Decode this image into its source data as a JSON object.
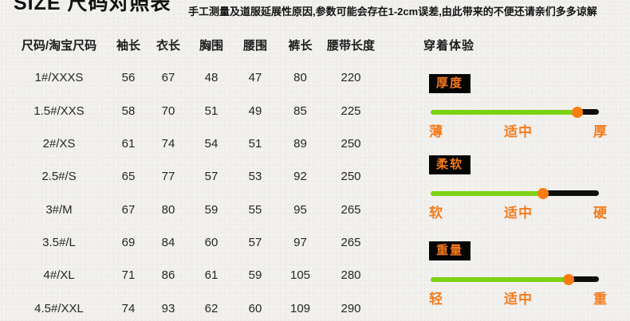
{
  "header": {
    "title": "SIZE 尺码对照表",
    "disclaimer": "手工测量及道服延展性原因,参数可能会存在1-2cm误差,由此带来的不便还请亲们多多谅解"
  },
  "size_table": {
    "columns": [
      "尺码/淘宝尺码",
      "袖长",
      "衣长",
      "胸围",
      "腰围",
      "裤长",
      "腰带长度"
    ],
    "rows": [
      [
        "1#/XXXS",
        "56",
        "67",
        "48",
        "47",
        "80",
        "220"
      ],
      [
        "1.5#/XXS",
        "58",
        "70",
        "51",
        "49",
        "85",
        "225"
      ],
      [
        "2#/XS",
        "61",
        "74",
        "54",
        "51",
        "89",
        "250"
      ],
      [
        "2.5#/S",
        "65",
        "77",
        "57",
        "53",
        "92",
        "250"
      ],
      [
        "3#/M",
        "67",
        "80",
        "59",
        "55",
        "95",
        "265"
      ],
      [
        "3.5#/L",
        "69",
        "84",
        "60",
        "57",
        "97",
        "265"
      ],
      [
        "4#/XL",
        "71",
        "86",
        "61",
        "59",
        "105",
        "280"
      ],
      [
        "4.5#/XXL",
        "74",
        "93",
        "62",
        "60",
        "109",
        "290"
      ]
    ]
  },
  "experience": {
    "title": "穿着体验",
    "sliders": [
      {
        "label": "厚度",
        "scale_left": "薄",
        "scale_middle": "适中",
        "scale_right": "厚",
        "value_pct": 87
      },
      {
        "label": "柔软",
        "scale_left": "软",
        "scale_middle": "适中",
        "scale_right": "硬",
        "value_pct": 67
      },
      {
        "label": "重量",
        "scale_left": "轻",
        "scale_middle": "适中",
        "scale_right": "重",
        "value_pct": 82
      }
    ]
  },
  "colors": {
    "background": "#f1f0ed",
    "text": "#1f1f1f",
    "slider_green": "#7cd113",
    "slider_black": "#0d0d0d",
    "dot_orange": "#fa7d10",
    "label_orange": "#f57c1e",
    "badge_background": "#050505"
  },
  "chart_data": {
    "type": "table",
    "title": "SIZE 尺码对照表",
    "columns": [
      "尺码/淘宝尺码",
      "袖长",
      "衣长",
      "胸围",
      "腰围",
      "裤长",
      "腰带长度"
    ],
    "rows": [
      [
        "1#/XXXS",
        56,
        67,
        48,
        47,
        80,
        220
      ],
      [
        "1.5#/XXS",
        58,
        70,
        51,
        49,
        85,
        225
      ],
      [
        "2#/XS",
        61,
        74,
        54,
        51,
        89,
        250
      ],
      [
        "2.5#/S",
        65,
        77,
        57,
        53,
        92,
        250
      ],
      [
        "3#/M",
        67,
        80,
        59,
        55,
        95,
        265
      ],
      [
        "3.5#/L",
        69,
        84,
        60,
        57,
        97,
        265
      ],
      [
        "4#/XL",
        71,
        86,
        61,
        59,
        105,
        280
      ],
      [
        "4.5#/XXL",
        74,
        93,
        62,
        60,
        109,
        290
      ]
    ],
    "gauges": [
      {
        "name": "厚度",
        "scale": [
          "薄",
          "适中",
          "厚"
        ],
        "value_pct": 87
      },
      {
        "name": "柔软",
        "scale": [
          "软",
          "适中",
          "硬"
        ],
        "value_pct": 67
      },
      {
        "name": "重量",
        "scale": [
          "轻",
          "适中",
          "重"
        ],
        "value_pct": 82
      }
    ]
  }
}
